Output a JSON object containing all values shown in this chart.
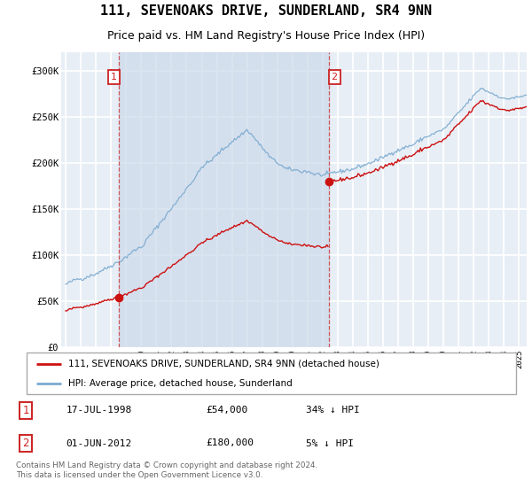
{
  "title": "111, SEVENOAKS DRIVE, SUNDERLAND, SR4 9NN",
  "subtitle": "Price paid vs. HM Land Registry's House Price Index (HPI)",
  "title_fontsize": 11,
  "subtitle_fontsize": 9,
  "bg_color": "#ffffff",
  "plot_bg_color": "#e8eef5",
  "plot_bg_color2": "#dde6f0",
  "grid_color": "#ffffff",
  "house_color": "#cc1111",
  "hpi_color": "#7aaad0",
  "shade_color": "#ccdaeb",
  "ylim": [
    0,
    320000
  ],
  "yticks": [
    0,
    50000,
    100000,
    150000,
    200000,
    250000,
    300000
  ],
  "ytick_labels": [
    "£0",
    "£50K",
    "£100K",
    "£150K",
    "£200K",
    "£250K",
    "£300K"
  ],
  "sale1_price": 54000,
  "sale1_date": "17-JUL-1998",
  "sale1_label": "34% ↓ HPI",
  "sale2_price": 180000,
  "sale2_date": "01-JUN-2012",
  "sale2_label": "5% ↓ HPI",
  "legend_house": "111, SEVENOAKS DRIVE, SUNDERLAND, SR4 9NN (detached house)",
  "legend_hpi": "HPI: Average price, detached house, Sunderland",
  "footer": "Contains HM Land Registry data © Crown copyright and database right 2024.\nThis data is licensed under the Open Government Licence v3.0.",
  "xstart_year": 1995,
  "xend_year": 2025,
  "sale1_year_f": 1998.54,
  "sale2_year_f": 2012.42
}
